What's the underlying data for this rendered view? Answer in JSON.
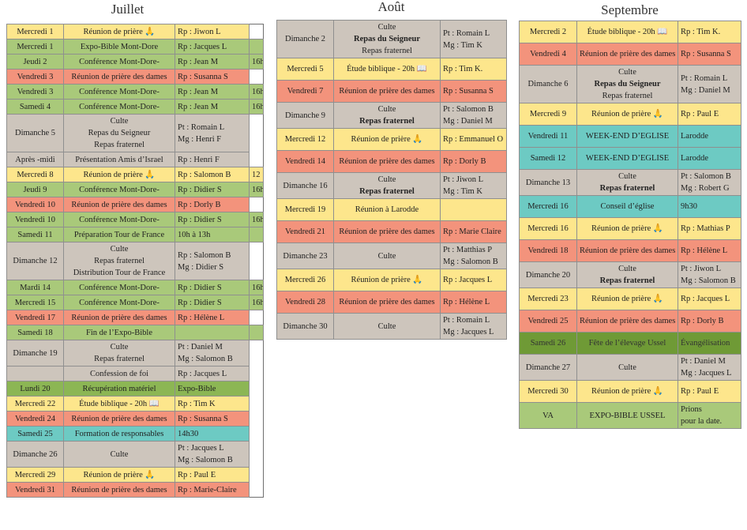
{
  "months": [
    {
      "title": "Juillet",
      "rows": [
        {
          "date": "Mercredi 1",
          "event": [
            "Réunion de prière 🙏"
          ],
          "resp": [
            "Rp : Jiwon L"
          ],
          "color": "yellow"
        },
        {
          "date": "Mercredi 1",
          "event": [
            "Expo-Bible Mont-Dore"
          ],
          "resp": [
            "Rp : Jacques L"
          ],
          "color": "green"
        },
        {
          "date": "Jeudi 2",
          "event": [
            "Conférence Mont-Dore-"
          ],
          "resp": [
            "Rp : Jean M"
          ],
          "extra": "16h",
          "color": "green"
        },
        {
          "date": "Vendredi 3",
          "event": [
            "Réunion de prière des dames"
          ],
          "resp": [
            "Rp : Susanna S"
          ],
          "color": "salmon"
        },
        {
          "date": "Vendredi 3",
          "event": [
            "Conférence Mont-Dore-"
          ],
          "resp": [
            "Rp : Jean M"
          ],
          "extra": "16h",
          "color": "green"
        },
        {
          "date": "Samedi 4",
          "event": [
            "Conférence Mont-Dore-"
          ],
          "resp": [
            "Rp : Jean M"
          ],
          "extra": "16h",
          "color": "green"
        },
        {
          "date": "Dimanche 5",
          "event": [
            "Culte",
            "Repas du Seigneur",
            "Repas fraternel"
          ],
          "resp": [
            "Pt : Romain L",
            "Mg : Henri F"
          ],
          "color": "grey"
        },
        {
          "date": "Après -midi",
          "event": [
            "Présentation Amis d’Israel"
          ],
          "resp": [
            "Rp : Henri F"
          ],
          "color": "grey"
        },
        {
          "date": "Mercredi 8",
          "event": [
            "Réunion de prière 🙏"
          ],
          "resp": [
            "Rp : Salomon B"
          ],
          "extra": "12",
          "color": "yellow"
        },
        {
          "date": "Jeudi 9",
          "event": [
            "Conférence Mont-Dore-"
          ],
          "resp": [
            "Rp : Didier S"
          ],
          "extra": "16h",
          "color": "green"
        },
        {
          "date": "Vendredi 10",
          "event": [
            "Réunion de prière des dames"
          ],
          "resp": [
            "Rp : Dorly B"
          ],
          "color": "salmon"
        },
        {
          "date": "Vendredi 10",
          "event": [
            "Conférence Mont-Dore-"
          ],
          "resp": [
            "Rp : Didier S"
          ],
          "extra": "16h",
          "color": "green"
        },
        {
          "date": "Samedi 11",
          "event": [
            "Préparation Tour de France"
          ],
          "resp": [
            "10h à 13h"
          ],
          "color": "green"
        },
        {
          "date": "Dimanche 12",
          "event": [
            "Culte",
            "Repas fraternel",
            "Distribution Tour de France"
          ],
          "resp": [
            "Rp : Salomon B",
            "Mg : Didier S"
          ],
          "color": "grey"
        },
        {
          "date": "Mardi 14",
          "event": [
            "Conférence Mont-Dore-"
          ],
          "resp": [
            "Rp : Didier S"
          ],
          "extra": "16h",
          "color": "green"
        },
        {
          "date": "Mercredi 15",
          "event": [
            "Conférence Mont-Dore-"
          ],
          "resp": [
            "Rp : Didier S"
          ],
          "extra": "16h",
          "color": "green"
        },
        {
          "date": "Vendredi 17",
          "event": [
            "Réunion de prière des dames"
          ],
          "resp": [
            "Rp : Hélène L"
          ],
          "color": "salmon"
        },
        {
          "date": "Samedi 18",
          "event": [
            "Fin de l’Expo-Bible"
          ],
          "color": "green"
        },
        {
          "date": "Dimanche 19",
          "event": [
            "Culte",
            "Repas fraternel"
          ],
          "resp": [
            "Pt : Daniel M",
            "Mg : Salomon B"
          ],
          "color": "grey"
        },
        {
          "event": [
            "Confession de foi"
          ],
          "resp": [
            "Rp : Jacques L"
          ],
          "color": "grey"
        },
        {
          "date": "Lundi 20",
          "event": [
            "Récupération matériel"
          ],
          "resp": [
            "Expo-Bible"
          ],
          "color": "darkgreen"
        },
        {
          "date": "Mercredi 22",
          "event": [
            "Étude biblique - 20h 📖"
          ],
          "resp": [
            "Rp : Tim K"
          ],
          "color": "yellow"
        },
        {
          "date": "Vendredi 24",
          "event": [
            "Réunion de prière des dames"
          ],
          "resp": [
            "Rp : Susanna S"
          ],
          "color": "salmon"
        },
        {
          "date": "Samedi 25",
          "event": [
            "Formation de responsables"
          ],
          "resp": [
            "14h30"
          ],
          "color": "teal"
        },
        {
          "date": "Dimanche 26",
          "event": [
            "Culte"
          ],
          "resp": [
            "Pt : Jacques L",
            "Mg : Salomon B"
          ],
          "color": "grey"
        },
        {
          "date": "Mercredi 29",
          "event": [
            "Réunion de prière 🙏"
          ],
          "resp": [
            "Rp : Paul E"
          ],
          "color": "yellow"
        },
        {
          "date": "Vendredi 31",
          "event": [
            "Réunion de prière des dames"
          ],
          "resp": [
            "Rp : Marie-Claire"
          ],
          "color": "salmon"
        }
      ]
    },
    {
      "title": "Août",
      "rows": [
        {
          "date": "Dimanche 2",
          "event": [
            "Culte",
            "Repas du Seigneur",
            "Repas fraternel"
          ],
          "resp": [
            "Pt : Romain L",
            "Mg : Tim K"
          ],
          "color": "grey"
        },
        {
          "date": "Mercredi 5",
          "event": [
            "Étude biblique - 20h 📖"
          ],
          "resp": [
            "Rp : Tim K."
          ],
          "color": "yellow"
        },
        {
          "date": "Vendredi 7",
          "event": [
            "Réunion de prière des dames"
          ],
          "resp": [
            "Rp : Susanna S"
          ],
          "color": "salmon"
        },
        {
          "date": "Dimanche 9",
          "event": [
            "Culte",
            "Repas fraternel"
          ],
          "resp": [
            "Pt : Salomon B",
            "Mg : Daniel M"
          ],
          "color": "grey"
        },
        {
          "date": "Mercredi 12",
          "event": [
            "Réunion de prière 🙏"
          ],
          "resp": [
            "Rp : Emmanuel O"
          ],
          "color": "yellow"
        },
        {
          "date": "Vendredi 14",
          "event": [
            "Réunion de prière des dames"
          ],
          "resp": [
            "Rp : Dorly B"
          ],
          "color": "salmon"
        },
        {
          "date": "Dimanche 16",
          "event": [
            "Culte",
            "Repas fraternel"
          ],
          "resp": [
            "Pt : Jiwon L",
            "Mg : Tim K"
          ],
          "color": "grey"
        },
        {
          "date": "Mercredi 19",
          "event": [
            "Réunion à Larodde"
          ],
          "color": "yellow"
        },
        {
          "date": "Vendredi 21",
          "event": [
            "Réunion de prière des dames"
          ],
          "resp": [
            "Rp : Marie Claire"
          ],
          "color": "salmon"
        },
        {
          "date": "Dimanche 23",
          "event": [
            "Culte"
          ],
          "resp": [
            "Pt : Matthias P",
            "Mg : Salomon B"
          ],
          "color": "grey"
        },
        {
          "date": "Mercredi 26",
          "event": [
            "Réunion de prière 🙏"
          ],
          "resp": [
            "Rp : Jacques L"
          ],
          "color": "yellow"
        },
        {
          "date": "Vendredi 28",
          "event": [
            "Réunion de prière des dames"
          ],
          "resp": [
            "Rp : Hélène L"
          ],
          "color": "salmon"
        },
        {
          "date": "Dimanche 30",
          "event": [
            "Culte"
          ],
          "resp": [
            "Pt : Romain L",
            "Mg : Jacques L"
          ],
          "color": "grey"
        }
      ]
    },
    {
      "title": "Septembre",
      "rows": [
        {
          "date": "Mercredi 2",
          "event": [
            "Étude biblique - 20h 📖"
          ],
          "resp": [
            "Rp : Tim K."
          ],
          "color": "yellow"
        },
        {
          "date": "Vendredi 4",
          "event": [
            "Réunion de prière des dames"
          ],
          "resp": [
            "Rp : Susanna S"
          ],
          "color": "salmon"
        },
        {
          "date": "Dimanche 6",
          "event": [
            "Culte",
            "Repas du Seigneur",
            "Repas fraternel"
          ],
          "resp": [
            "Pt : Romain L",
            "Mg : Daniel M"
          ],
          "color": "grey"
        },
        {
          "date": "Mercredi 9",
          "event": [
            "Réunion de prière 🙏"
          ],
          "resp": [
            "Rp : Paul E"
          ],
          "color": "yellow"
        },
        {
          "date": "Vendredi 11",
          "event": [
            "WEEK-END D’EGLISE"
          ],
          "resp": [
            "Larodde"
          ],
          "color": "teal"
        },
        {
          "date": "Samedi 12",
          "event": [
            "WEEK-END D’EGLISE"
          ],
          "resp": [
            "Larodde"
          ],
          "color": "teal"
        },
        {
          "date": "Dimanche 13",
          "event": [
            "Culte",
            "Repas fraternel"
          ],
          "resp": [
            "Pt : Salomon B",
            "Mg : Robert G"
          ],
          "color": "grey"
        },
        {
          "date": "Mercredi 16",
          "event": [
            "Conseil d’église"
          ],
          "resp": [
            "9h30"
          ],
          "color": "teal"
        },
        {
          "date": "Mercredi 16",
          "event": [
            "Réunion de prière 🙏"
          ],
          "resp": [
            "Rp : Mathias P"
          ],
          "color": "yellow"
        },
        {
          "date": "Vendredi 18",
          "event": [
            "Réunion de prière des dames"
          ],
          "resp": [
            "Rp : Hélène L"
          ],
          "color": "salmon"
        },
        {
          "date": "Dimanche 20",
          "event": [
            "Culte",
            "Repas fraternel"
          ],
          "resp": [
            "Pt : Jiwon L",
            "Mg : Salomon B"
          ],
          "color": "grey"
        },
        {
          "date": "Mercredi 23",
          "event": [
            "Réunion de prière 🙏"
          ],
          "resp": [
            "Rp : Jacques L"
          ],
          "color": "yellow"
        },
        {
          "date": "Vendredi 25",
          "event": [
            "Réunion de prière des dames"
          ],
          "resp": [
            "Rp : Dorly B"
          ],
          "color": "salmon"
        },
        {
          "date": "Samedi 26",
          "event": [
            "Fête de l’élevage Ussel"
          ],
          "resp": [
            "Évangélisation"
          ],
          "color": "olive"
        },
        {
          "date": "Dimanche 27",
          "event": [
            "Culte"
          ],
          "resp": [
            "Pt : Daniel M",
            "Mg : Jacques L"
          ],
          "color": "grey"
        },
        {
          "date": "Mercredi 30",
          "event": [
            "Réunion de prière 🙏"
          ],
          "resp": [
            "Rp : Paul E"
          ],
          "color": "yellow"
        },
        {
          "date": "VA",
          "event": [
            "EXPO-BIBLE USSEL"
          ],
          "resp": [
            "Prions",
            "pour la date."
          ],
          "color": "green"
        }
      ]
    }
  ]
}
